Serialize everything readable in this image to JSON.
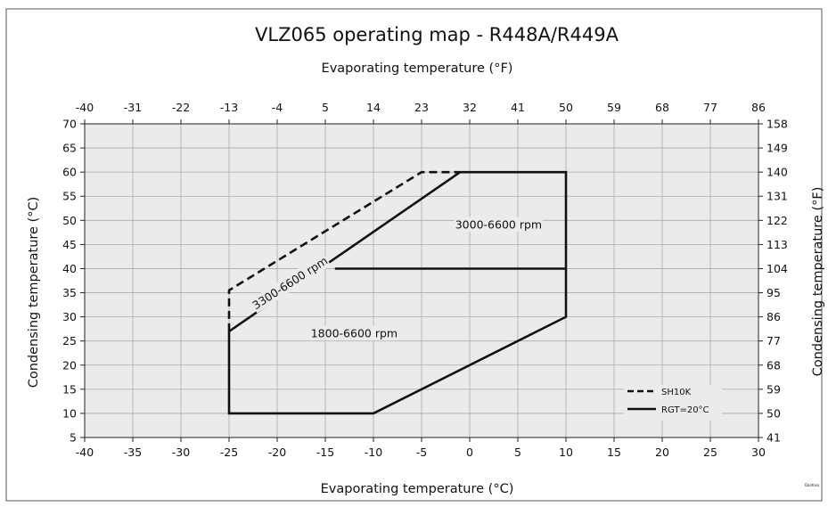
{
  "chart_data": {
    "type": "line",
    "title": "VLZ065 operating map - R448A/R449A",
    "xlabel_bottom": "Evaporating temperature (°C)",
    "xlabel_top": "Evaporating temperature (°F)",
    "ylabel_left": "Condensing temperature (°C)",
    "ylabel_right": "Condensing temperature (°F)",
    "xlim": [
      -40,
      30
    ],
    "ylim": [
      5,
      70
    ],
    "x_ticks_c": [
      "-40",
      "-35",
      "-30",
      "-25",
      "-20",
      "-15",
      "-10",
      "-5",
      "0",
      "5",
      "10",
      "15",
      "20",
      "25",
      "30"
    ],
    "x_ticks_f": [
      "-40",
      "-31",
      "-22",
      "-13",
      "-4",
      "5",
      "14",
      "23",
      "32",
      "41",
      "50",
      "59",
      "68",
      "77",
      "86"
    ],
    "y_ticks_c": [
      "5",
      "10",
      "15",
      "20",
      "25",
      "30",
      "35",
      "40",
      "45",
      "50",
      "55",
      "60",
      "65",
      "70"
    ],
    "y_ticks_f": [
      "41",
      "50",
      "59",
      "68",
      "77",
      "86",
      "95",
      "104",
      "113",
      "122",
      "131",
      "140",
      "149",
      "158"
    ],
    "grid": true,
    "legend_position": "bottom-right",
    "legend": [
      {
        "label": "SH10K",
        "style": "dashed"
      },
      {
        "label": "RGT=20°C",
        "style": "solid"
      }
    ],
    "series": [
      {
        "name": "RGT=20°C",
        "style": "solid",
        "x": [
          -25,
          -25,
          -10,
          10,
          10,
          -1,
          -25
        ],
        "y": [
          27,
          10,
          10,
          30,
          60,
          60,
          27
        ]
      },
      {
        "name": "SH10K",
        "style": "dashed",
        "x": [
          -25,
          -25,
          -5,
          -1
        ],
        "y": [
          27,
          35.5,
          60,
          60
        ]
      },
      {
        "name": "RGT=20°C",
        "style": "solid",
        "x": [
          -14,
          10
        ],
        "y": [
          40,
          40
        ]
      }
    ],
    "annotations": [
      {
        "text": "3000-6600 rpm",
        "x": 3,
        "y": 48.5
      },
      {
        "text": "3300-6600 rpm",
        "x": -18.5,
        "y": 36.5,
        "rotate": -33
      },
      {
        "text": "1800-6600 rpm",
        "x": -12,
        "y": 26
      }
    ]
  },
  "corner_note": "Danfoss"
}
